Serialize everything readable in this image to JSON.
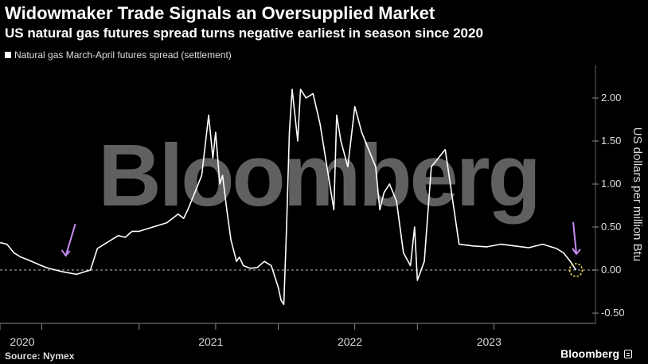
{
  "header": {
    "title": "Widowmaker Trade Signals an Oversupplied Market",
    "subtitle": "US natural gas futures spread turns negative earliest in season since 2020"
  },
  "legend": {
    "label": "Natural gas March-April futures spread (settlement)"
  },
  "footer": {
    "source": "Source: Nymex",
    "brand": "Bloomberg"
  },
  "watermark": "Bloomberg",
  "colors": {
    "background": "#000000",
    "line": "#ffffff",
    "arrow": "#c58cf0",
    "highlight": "#e8d24a",
    "watermark": "#808080"
  },
  "chart_data": {
    "type": "line",
    "ylabel": "US dollars per million Btu",
    "ylim": [
      -0.62,
      2.38
    ],
    "y_ticks": [
      2.0,
      1.5,
      1.0,
      0.5,
      0.0,
      -0.5
    ],
    "y_tick_labels": [
      "2.00",
      "1.50",
      "1.00",
      "0.50",
      "0.00",
      "-0.50"
    ],
    "xlim": [
      2020.0,
      2024.28
    ],
    "x_ticks": [
      {
        "label": "2020",
        "year": 2020
      },
      {
        "label": "2021",
        "year": 2021
      },
      {
        "label": "2022",
        "year": 2022
      },
      {
        "label": "2023",
        "year": 2023
      }
    ],
    "reference_line": 0,
    "annotations": [
      {
        "type": "arrow",
        "x": 2020.45,
        "y": 0.0
      },
      {
        "type": "arrow",
        "x": 2024.12,
        "y": 0.02
      },
      {
        "type": "circle",
        "x": 2024.14,
        "y": 0.0
      }
    ],
    "series": [
      {
        "name": "Natural gas March-April futures spread (settlement)",
        "x": [
          2020.0,
          2020.05,
          2020.1,
          2020.15,
          2020.2,
          2020.3,
          2020.35,
          2020.4,
          2020.45,
          2020.55,
          2020.65,
          2020.7,
          2020.75,
          2020.8,
          2020.85,
          2020.9,
          2020.95,
          2021.0,
          2021.1,
          2021.2,
          2021.28,
          2021.32,
          2021.35,
          2021.4,
          2021.45,
          2021.5,
          2021.53,
          2021.55,
          2021.58,
          2021.6,
          2021.63,
          2021.66,
          2021.7,
          2021.72,
          2021.75,
          2021.8,
          2021.85,
          2021.9,
          2021.95,
          2021.98,
          2022.0,
          2022.02,
          2022.04,
          2022.06,
          2022.08,
          2022.1,
          2022.12,
          2022.14,
          2022.16,
          2022.2,
          2022.25,
          2022.3,
          2022.35,
          2022.4,
          2022.42,
          2022.45,
          2022.5,
          2022.55,
          2022.6,
          2022.65,
          2022.7,
          2022.73,
          2022.76,
          2022.8,
          2022.85,
          2022.9,
          2022.95,
          2022.98,
          2023.0,
          2023.05,
          2023.1,
          2023.2,
          2023.3,
          2023.4,
          2023.5,
          2023.6,
          2023.7,
          2023.8,
          2023.9,
          2024.0,
          2024.05,
          2024.1,
          2024.14
        ],
        "y": [
          0.32,
          0.3,
          0.2,
          0.15,
          0.12,
          0.05,
          0.02,
          0.0,
          -0.02,
          -0.05,
          0.0,
          0.25,
          0.3,
          0.35,
          0.4,
          0.38,
          0.45,
          0.45,
          0.5,
          0.55,
          0.65,
          0.6,
          0.7,
          0.9,
          1.1,
          1.8,
          1.3,
          1.6,
          1.0,
          1.1,
          0.7,
          0.35,
          0.1,
          0.15,
          0.05,
          0.02,
          0.03,
          0.1,
          0.05,
          -0.1,
          -0.2,
          -0.35,
          -0.4,
          0.5,
          1.6,
          2.1,
          1.8,
          1.5,
          2.1,
          2.0,
          2.05,
          1.7,
          1.2,
          0.7,
          1.8,
          1.5,
          1.2,
          1.9,
          1.6,
          1.4,
          1.2,
          0.7,
          0.9,
          1.0,
          0.8,
          0.2,
          0.05,
          0.5,
          -0.12,
          0.1,
          1.2,
          1.4,
          0.3,
          0.28,
          0.27,
          0.3,
          0.28,
          0.26,
          0.3,
          0.25,
          0.2,
          0.1,
          0.0
        ]
      }
    ]
  }
}
